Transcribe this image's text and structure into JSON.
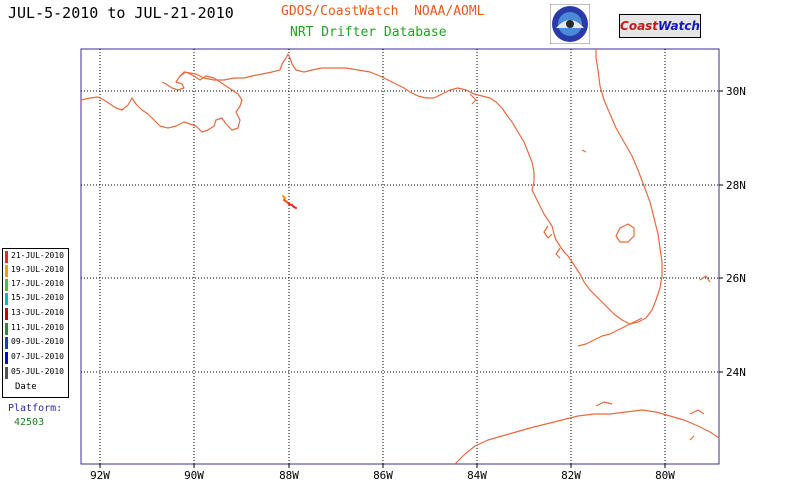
{
  "header": {
    "date_range": "JUL-5-2010 to JUL-21-2010",
    "org_prefix": "GDOS/CoastWatch",
    "org_suffix": "NOAA/AOML",
    "database": "NRT Drifter Database",
    "logo_left": "Coast",
    "logo_right": "Watch"
  },
  "map": {
    "lon_labels": [
      "92W",
      "90W",
      "88W",
      "86W",
      "84W",
      "82W",
      "80W"
    ],
    "lat_labels": [
      "30N",
      "28N",
      "26N",
      "24N"
    ],
    "coast_color": "#e86a40",
    "frame_color": "#3a2f8c"
  },
  "legend": {
    "items": [
      {
        "label": "21-JUL-2010",
        "color": "#ff2020"
      },
      {
        "label": "19-JUL-2010",
        "color": "#ff9900"
      },
      {
        "label": "17-JUL-2010",
        "color": "#33cc33"
      },
      {
        "label": "15-JUL-2010",
        "color": "#00bbbb"
      },
      {
        "label": "13-JUL-2010",
        "color": "#cc0000"
      },
      {
        "label": "11-JUL-2010",
        "color": "#338833"
      },
      {
        "label": "09-JUL-2010",
        "color": "#0044cc"
      },
      {
        "label": "07-JUL-2010",
        "color": "#0000ff"
      },
      {
        "label": "05-JUL-2010",
        "color": "#555555"
      }
    ],
    "axis_label": "Date"
  },
  "platform": {
    "label": "Platform:",
    "id": "42503"
  }
}
